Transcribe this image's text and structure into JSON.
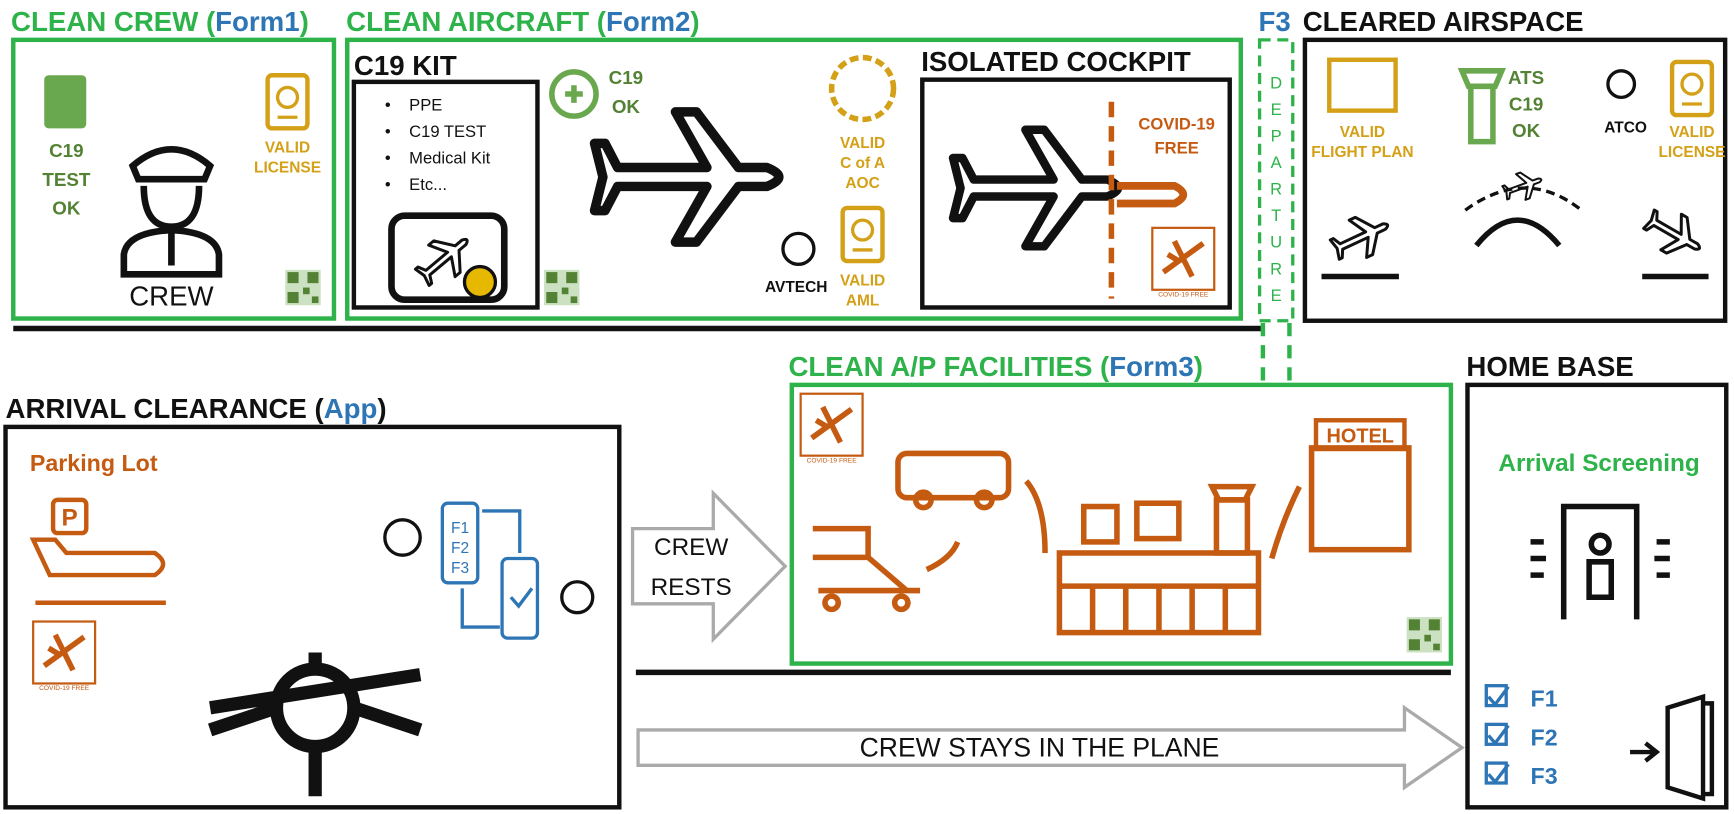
{
  "clean_crew": {
    "title": [
      "CLEAN CREW (",
      "Form1",
      ")"
    ],
    "test": [
      "C19",
      "TEST",
      "OK"
    ],
    "license": [
      "VALID",
      "LICENSE"
    ],
    "crew": "CREW"
  },
  "clean_aircraft": {
    "title": [
      "CLEAN AIRCRAFT (",
      "Form2",
      ")"
    ],
    "kit_title": "C19 KIT",
    "kit_items": [
      "PPE",
      "C19 TEST",
      "Medical Kit",
      "Etc..."
    ],
    "c19_ok": [
      "C19",
      "OK"
    ],
    "valid_coa": [
      "VALID",
      "C of A",
      "AOC"
    ],
    "avtech": "AVTECH",
    "valid_aml": [
      "VALID",
      "AML"
    ],
    "cockpit_title": "ISOLATED COCKPIT",
    "covid_free": [
      "COVID-19",
      "FREE"
    ]
  },
  "departure": {
    "label": "F3",
    "letters": [
      "D",
      "E",
      "P",
      "A",
      "R",
      "T",
      "U",
      "R",
      "E"
    ]
  },
  "cleared_airspace": {
    "title": "CLEARED AIRSPACE",
    "flight_plan": [
      "VALID",
      "FLIGHT PLAN"
    ],
    "ats": [
      "ATS",
      "C19",
      "OK"
    ],
    "atco": "ATCO",
    "license": [
      "VALID",
      "LICENSE"
    ]
  },
  "clean_ap": {
    "title": [
      "CLEAN A/P FACILITIES (",
      "Form3",
      ")"
    ],
    "hotel": "HOTEL"
  },
  "stamp": "COVID-19 FREE",
  "arrival": {
    "title": [
      "ARRIVAL CLEARANCE (",
      "App",
      ")"
    ],
    "parking": "Parking Lot",
    "parking_sign": "P",
    "phone_items": [
      "F1",
      "F2",
      "F3"
    ]
  },
  "crew_rests": [
    "CREW",
    "RESTS"
  ],
  "crew_stays": "CREW STAYS IN THE PLANE",
  "home_base": {
    "title": "HOME BASE",
    "screening": "Arrival Screening",
    "checklist": [
      "F1",
      "F2",
      "F3"
    ]
  }
}
